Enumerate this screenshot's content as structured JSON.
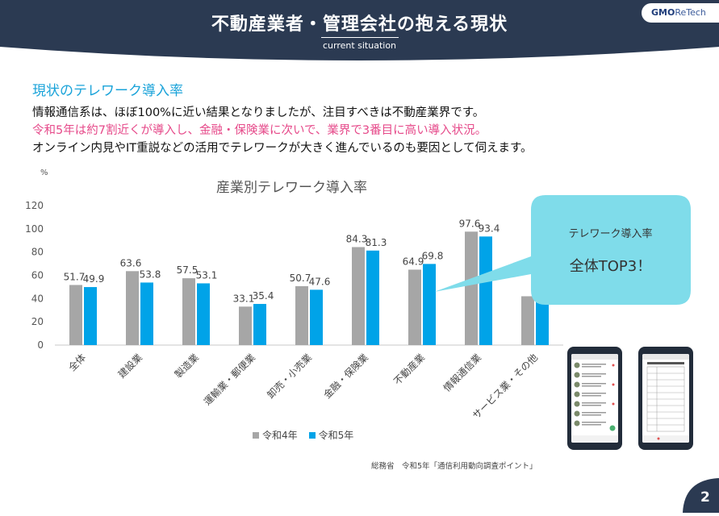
{
  "header": {
    "title": "不動産業者・管理会社の抱える現状",
    "subtitle": "current situation",
    "logo_gmo": "GMO",
    "logo_rest": "ReTech"
  },
  "section_title": "現状のテレワーク導入率",
  "paragraphs": [
    "情報通信系は、ほぼ100%に近い結果となりましたが、注目すべきは不動産業界です。",
    "令和5年は約7割近くが導入し、金融・保険業に次いで、業界で3番目に高い導入状況。",
    "オンライン内見やIT重説などの活用でテレワークが大きく進んでいるのも要因として伺えます。"
  ],
  "callout": {
    "line1": "テレワーク導入率",
    "line2": "全体TOP3！"
  },
  "source": "総務省　令和5年「通信利用動向調査ポイント」",
  "page_number": "2",
  "colors": {
    "header_bg": "#2b3a52",
    "accent_blue": "#1aa3d9",
    "highlight_pink": "#e64a8a",
    "bar_r4": "#a6a6a6",
    "bar_r5": "#00a3e8",
    "bubble": "#7fdcea"
  },
  "chart_data": {
    "type": "bar",
    "title": "産業別テレワーク導入率",
    "unit_label": "%",
    "categories": [
      "全体",
      "建設業",
      "製造業",
      "運輸業・郵便業",
      "卸売・小売業",
      "金融・保険業",
      "不動産業",
      "情報通信業",
      "サービス業・その他"
    ],
    "series": [
      {
        "name": "令和4年",
        "values": [
          51.7,
          63.6,
          57.5,
          33.1,
          50.7,
          84.3,
          64.9,
          97.6,
          42.0
        ],
        "labels": [
          "51.7",
          "63.6",
          "57.5",
          "33.1",
          "50.7",
          "84.3",
          "64.9",
          "97.6",
          ""
        ]
      },
      {
        "name": "令和5年",
        "values": [
          49.9,
          53.8,
          53.1,
          35.4,
          47.6,
          81.3,
          69.8,
          93.4,
          38.0
        ],
        "labels": [
          "49.9",
          "53.8",
          "53.1",
          "35.4",
          "47.6",
          "81.3",
          "69.8",
          "93.4",
          ""
        ]
      }
    ],
    "ylim": [
      0,
      120
    ],
    "yticks": [
      0,
      20,
      40,
      60,
      80,
      100,
      120
    ],
    "legend_position": "bottom",
    "grid": false
  }
}
